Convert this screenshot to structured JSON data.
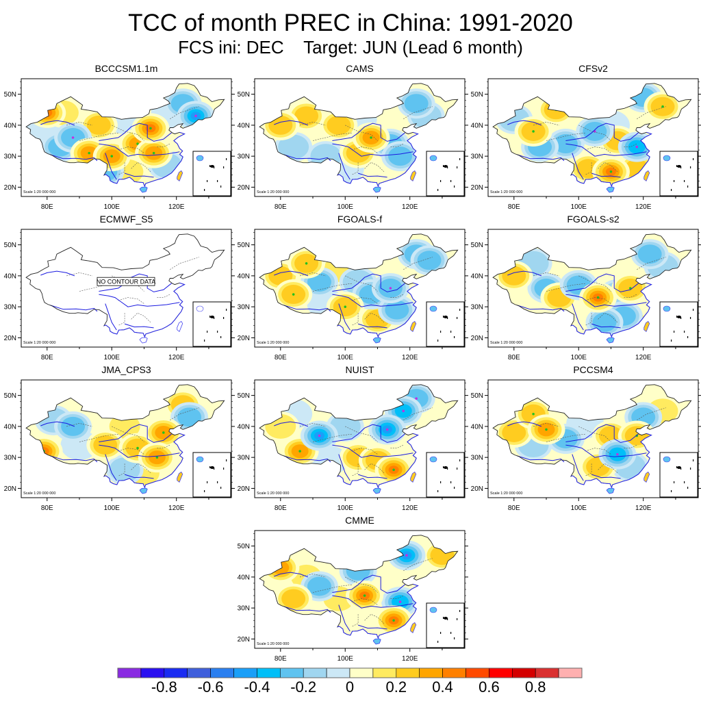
{
  "header": {
    "title": "TCC of month PREC in China: 1991-2020",
    "subtitle_init": "FCS ini: DEC",
    "subtitle_target": "Target: JUN (Lead 6 month)"
  },
  "chart_data": {
    "type": "heatmap",
    "title": "TCC of month PREC in China: 1991-2020",
    "subtitle": "FCS ini: DEC    Target: JUN (Lead 6 month)",
    "x_ticks": [
      "80E",
      "100E",
      "120E"
    ],
    "y_ticks": [
      "20N",
      "30N",
      "40N",
      "50N"
    ],
    "xlim_deg_e": [
      72,
      137
    ],
    "ylim_deg_n": [
      17,
      55
    ],
    "scale_label": "Scale 1:20 000 000",
    "no_data_label": "NO CONTOUR DATA",
    "colorbar": {
      "ticks": [
        "-0.8",
        "-0.6",
        "-0.4",
        "-0.2",
        "0",
        "0.2",
        "0.4",
        "0.6",
        "0.8"
      ],
      "levels": [
        -0.9,
        -0.8,
        -0.7,
        -0.6,
        -0.5,
        -0.4,
        -0.3,
        -0.2,
        -0.1,
        0,
        0.1,
        0.2,
        0.3,
        0.4,
        0.5,
        0.6,
        0.7,
        0.8,
        0.9
      ],
      "colors": [
        "#8a2be2",
        "#2a10f0",
        "#1a2cf2",
        "#3f5fdc",
        "#2a7ff0",
        "#1a9ff8",
        "#00bff8",
        "#5fc3f0",
        "#a0d6f0",
        "#cce8f6",
        "#ffffc8",
        "#ffeb60",
        "#ffcc20",
        "#ffa500",
        "#ff8000",
        "#ff4a00",
        "#ff0000",
        "#d40000",
        "#da3030",
        "#ffb0b0"
      ]
    },
    "panels": [
      {
        "name": "BCCCSM1.1m",
        "has_data": true,
        "regions": [
          {
            "lon": 80,
            "lat": 44,
            "v": 0.45
          },
          {
            "lon": 85,
            "lat": 44,
            "v": 0.2
          },
          {
            "lon": 78,
            "lat": 38,
            "v": -0.15
          },
          {
            "lon": 88,
            "lat": 36,
            "v": -0.35
          },
          {
            "lon": 84,
            "lat": 33,
            "v": -0.3
          },
          {
            "lon": 93,
            "lat": 31,
            "v": 0.4
          },
          {
            "lon": 100,
            "lat": 30,
            "v": 0.4
          },
          {
            "lon": 96,
            "lat": 40,
            "v": 0.25
          },
          {
            "lon": 104,
            "lat": 42,
            "v": -0.1
          },
          {
            "lon": 108,
            "lat": 34,
            "v": 0.4
          },
          {
            "lon": 112,
            "lat": 39,
            "v": 0.45
          },
          {
            "lon": 113,
            "lat": 31,
            "v": 0.4
          },
          {
            "lon": 117,
            "lat": 27,
            "v": -0.2
          },
          {
            "lon": 112,
            "lat": 25,
            "v": 0.15
          },
          {
            "lon": 122,
            "lat": 47,
            "v": -0.3
          },
          {
            "lon": 126,
            "lat": 43,
            "v": -0.45
          },
          {
            "lon": 118,
            "lat": 44,
            "v": -0.05
          },
          {
            "lon": 105,
            "lat": 25,
            "v": 0.2
          },
          {
            "lon": 98,
            "lat": 25,
            "v": -0.25
          }
        ]
      },
      {
        "name": "CAMS",
        "has_data": true,
        "regions": [
          {
            "lon": 80,
            "lat": 40,
            "v": 0.3
          },
          {
            "lon": 88,
            "lat": 43,
            "v": 0.25
          },
          {
            "lon": 84,
            "lat": 33,
            "v": -0.2
          },
          {
            "lon": 92,
            "lat": 36,
            "v": 0.15
          },
          {
            "lon": 98,
            "lat": 40,
            "v": 0.3
          },
          {
            "lon": 104,
            "lat": 42,
            "v": -0.1
          },
          {
            "lon": 108,
            "lat": 36,
            "v": 0.4
          },
          {
            "lon": 104,
            "lat": 31,
            "v": 0.3
          },
          {
            "lon": 114,
            "lat": 34,
            "v": -0.3
          },
          {
            "lon": 117,
            "lat": 30,
            "v": -0.3
          },
          {
            "lon": 112,
            "lat": 26,
            "v": 0.15
          },
          {
            "lon": 122,
            "lat": 47,
            "v": -0.25
          },
          {
            "lon": 125,
            "lat": 43,
            "v": -0.2
          },
          {
            "lon": 100,
            "lat": 26,
            "v": -0.15
          },
          {
            "lon": 94,
            "lat": 30,
            "v": -0.2
          }
        ]
      },
      {
        "name": "CFSv2",
        "has_data": true,
        "regions": [
          {
            "lon": 86,
            "lat": 38,
            "v": 0.35
          },
          {
            "lon": 93,
            "lat": 45,
            "v": 0.35
          },
          {
            "lon": 80,
            "lat": 42,
            "v": -0.2
          },
          {
            "lon": 88,
            "lat": 33,
            "v": -0.3
          },
          {
            "lon": 96,
            "lat": 34,
            "v": -0.25
          },
          {
            "lon": 105,
            "lat": 38,
            "v": -0.35
          },
          {
            "lon": 110,
            "lat": 40,
            "v": -0.15
          },
          {
            "lon": 112,
            "lat": 35,
            "v": 0.25
          },
          {
            "lon": 118,
            "lat": 33,
            "v": -0.4
          },
          {
            "lon": 110,
            "lat": 25,
            "v": 0.45
          },
          {
            "lon": 103,
            "lat": 26,
            "v": 0.3
          },
          {
            "lon": 118,
            "lat": 26,
            "v": 0.3
          },
          {
            "lon": 126,
            "lat": 46,
            "v": 0.35
          },
          {
            "lon": 120,
            "lat": 49,
            "v": -0.25
          },
          {
            "lon": 118,
            "lat": 42,
            "v": 0.1
          }
        ]
      },
      {
        "name": "ECMWF_S5",
        "has_data": false,
        "regions": []
      },
      {
        "name": "FGOALS-f",
        "has_data": true,
        "regions": [
          {
            "lon": 80,
            "lat": 40,
            "v": 0.3
          },
          {
            "lon": 88,
            "lat": 44,
            "v": 0.35
          },
          {
            "lon": 84,
            "lat": 34,
            "v": 0.35
          },
          {
            "lon": 92,
            "lat": 38,
            "v": -0.25
          },
          {
            "lon": 98,
            "lat": 42,
            "v": 0.2
          },
          {
            "lon": 104,
            "lat": 38,
            "v": -0.2
          },
          {
            "lon": 100,
            "lat": 30,
            "v": 0.35
          },
          {
            "lon": 108,
            "lat": 34,
            "v": -0.3
          },
          {
            "lon": 114,
            "lat": 36,
            "v": -0.35
          },
          {
            "lon": 116,
            "lat": 29,
            "v": -0.3
          },
          {
            "lon": 110,
            "lat": 26,
            "v": 0.25
          },
          {
            "lon": 122,
            "lat": 47,
            "v": -0.25
          },
          {
            "lon": 126,
            "lat": 45,
            "v": -0.3
          },
          {
            "lon": 94,
            "lat": 31,
            "v": -0.15
          }
        ]
      },
      {
        "name": "FGOALS-s2",
        "has_data": true,
        "regions": [
          {
            "lon": 80,
            "lat": 40,
            "v": 0.3
          },
          {
            "lon": 86,
            "lat": 44,
            "v": -0.2
          },
          {
            "lon": 90,
            "lat": 36,
            "v": -0.25
          },
          {
            "lon": 94,
            "lat": 33,
            "v": 0.3
          },
          {
            "lon": 100,
            "lat": 37,
            "v": -0.3
          },
          {
            "lon": 106,
            "lat": 33,
            "v": 0.65
          },
          {
            "lon": 112,
            "lat": 34,
            "v": -0.2
          },
          {
            "lon": 116,
            "lat": 36,
            "v": 0.35
          },
          {
            "lon": 114,
            "lat": 27,
            "v": -0.25
          },
          {
            "lon": 108,
            "lat": 25,
            "v": -0.3
          },
          {
            "lon": 104,
            "lat": 42,
            "v": 0.15
          },
          {
            "lon": 122,
            "lat": 47,
            "v": -0.3
          },
          {
            "lon": 126,
            "lat": 43,
            "v": -0.2
          },
          {
            "lon": 116,
            "lat": 25,
            "v": 0.2
          }
        ]
      },
      {
        "name": "JMA_CPS3",
        "has_data": true,
        "regions": [
          {
            "lon": 79,
            "lat": 32,
            "v": 0.45
          },
          {
            "lon": 82,
            "lat": 42,
            "v": -0.2
          },
          {
            "lon": 88,
            "lat": 40,
            "v": -0.3
          },
          {
            "lon": 90,
            "lat": 34,
            "v": -0.15
          },
          {
            "lon": 98,
            "lat": 34,
            "v": 0.3
          },
          {
            "lon": 104,
            "lat": 40,
            "v": 0.2
          },
          {
            "lon": 108,
            "lat": 33,
            "v": 0.35
          },
          {
            "lon": 116,
            "lat": 38,
            "v": 0.4
          },
          {
            "lon": 114,
            "lat": 30,
            "v": 0.4
          },
          {
            "lon": 110,
            "lat": 25,
            "v": 0.2
          },
          {
            "lon": 104,
            "lat": 26,
            "v": -0.2
          },
          {
            "lon": 122,
            "lat": 47,
            "v": 0.3
          },
          {
            "lon": 124,
            "lat": 43,
            "v": -0.3
          },
          {
            "lon": 118,
            "lat": 43,
            "v": 0.1
          }
        ]
      },
      {
        "name": "NUIST",
        "has_data": true,
        "regions": [
          {
            "lon": 80,
            "lat": 40,
            "v": 0.2
          },
          {
            "lon": 86,
            "lat": 32,
            "v": 0.4
          },
          {
            "lon": 92,
            "lat": 37,
            "v": -0.5
          },
          {
            "lon": 100,
            "lat": 40,
            "v": -0.2
          },
          {
            "lon": 104,
            "lat": 30,
            "v": 0.3
          },
          {
            "lon": 110,
            "lat": 29,
            "v": 0.3
          },
          {
            "lon": 115,
            "lat": 26,
            "v": 0.45
          },
          {
            "lon": 113,
            "lat": 39,
            "v": -0.5
          },
          {
            "lon": 118,
            "lat": 45,
            "v": -0.4
          },
          {
            "lon": 122,
            "lat": 49,
            "v": -0.35
          },
          {
            "lon": 126,
            "lat": 45,
            "v": 0.1
          },
          {
            "lon": 84,
            "lat": 44,
            "v": -0.1
          },
          {
            "lon": 95,
            "lat": 29,
            "v": -0.1
          }
        ]
      },
      {
        "name": "PCCSM4",
        "has_data": true,
        "regions": [
          {
            "lon": 80,
            "lat": 38,
            "v": 0.25
          },
          {
            "lon": 86,
            "lat": 44,
            "v": 0.35
          },
          {
            "lon": 90,
            "lat": 39,
            "v": 0.4
          },
          {
            "lon": 86,
            "lat": 34,
            "v": -0.2
          },
          {
            "lon": 96,
            "lat": 36,
            "v": -0.25
          },
          {
            "lon": 102,
            "lat": 41,
            "v": -0.15
          },
          {
            "lon": 110,
            "lat": 37,
            "v": 0.3
          },
          {
            "lon": 112,
            "lat": 31,
            "v": -0.4
          },
          {
            "lon": 106,
            "lat": 27,
            "v": 0.3
          },
          {
            "lon": 116,
            "lat": 27,
            "v": -0.2
          },
          {
            "lon": 120,
            "lat": 43,
            "v": -0.3
          },
          {
            "lon": 126,
            "lat": 45,
            "v": 0.2
          },
          {
            "lon": 118,
            "lat": 37,
            "v": 0.35
          }
        ]
      },
      {
        "name": "CMME",
        "has_data": true,
        "regions": [
          {
            "lon": 80,
            "lat": 43,
            "v": 0.4
          },
          {
            "lon": 88,
            "lat": 40,
            "v": 0.2
          },
          {
            "lon": 92,
            "lat": 37,
            "v": -0.25
          },
          {
            "lon": 84,
            "lat": 33,
            "v": 0.3
          },
          {
            "lon": 98,
            "lat": 33,
            "v": 0.2
          },
          {
            "lon": 104,
            "lat": 42,
            "v": -0.3
          },
          {
            "lon": 106,
            "lat": 34,
            "v": 0.45
          },
          {
            "lon": 113,
            "lat": 40,
            "v": 0.1
          },
          {
            "lon": 117,
            "lat": 32,
            "v": -0.4
          },
          {
            "lon": 115,
            "lat": 26,
            "v": 0.45
          },
          {
            "lon": 106,
            "lat": 26,
            "v": 0.15
          },
          {
            "lon": 119,
            "lat": 47,
            "v": -0.45
          },
          {
            "lon": 124,
            "lat": 43,
            "v": 0.15
          },
          {
            "lon": 130,
            "lat": 47,
            "v": 0.3
          }
        ]
      }
    ]
  }
}
